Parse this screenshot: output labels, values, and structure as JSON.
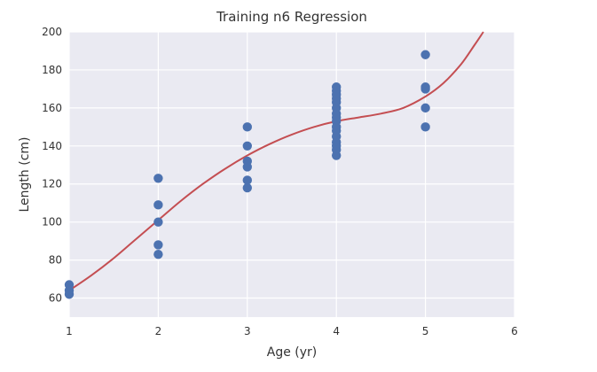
{
  "chart_data": {
    "type": "scatter",
    "title": "Training n6 Regression",
    "xlabel": "Age (yr)",
    "ylabel": "Length (cm)",
    "xlim": [
      1,
      6
    ],
    "ylim": [
      50,
      200
    ],
    "xticks": [
      1,
      2,
      3,
      4,
      5,
      6
    ],
    "yticks": [
      60,
      80,
      100,
      120,
      140,
      160,
      180,
      200
    ],
    "grid": true,
    "colors": {
      "background": "#eaeaf2",
      "grid": "#ffffff",
      "points": "#4c72b0",
      "curve": "#c44e52"
    },
    "series": [
      {
        "kind": "points",
        "points": [
          [
            1,
            62
          ],
          [
            1,
            64
          ],
          [
            1,
            67
          ],
          [
            2,
            83
          ],
          [
            2,
            88
          ],
          [
            2,
            100
          ],
          [
            2,
            109
          ],
          [
            2,
            123
          ],
          [
            3,
            118
          ],
          [
            3,
            122
          ],
          [
            3,
            129
          ],
          [
            3,
            132
          ],
          [
            3,
            140
          ],
          [
            3,
            150
          ],
          [
            4,
            135
          ],
          [
            4,
            138
          ],
          [
            4,
            140
          ],
          [
            4,
            142
          ],
          [
            4,
            145
          ],
          [
            4,
            148
          ],
          [
            4,
            150
          ],
          [
            4,
            153
          ],
          [
            4,
            155
          ],
          [
            4,
            157
          ],
          [
            4,
            160
          ],
          [
            4,
            163
          ],
          [
            4,
            165
          ],
          [
            4,
            167
          ],
          [
            4,
            169
          ],
          [
            4,
            171
          ],
          [
            5,
            150
          ],
          [
            5,
            160
          ],
          [
            5,
            170
          ],
          [
            5,
            171
          ],
          [
            5,
            188
          ]
        ]
      },
      {
        "kind": "regression-curve",
        "points": [
          [
            1.0,
            64
          ],
          [
            1.25,
            72
          ],
          [
            1.5,
            81
          ],
          [
            1.75,
            91
          ],
          [
            2.0,
            101
          ],
          [
            2.25,
            111
          ],
          [
            2.5,
            120
          ],
          [
            2.75,
            128
          ],
          [
            3.0,
            135
          ],
          [
            3.25,
            141
          ],
          [
            3.5,
            146
          ],
          [
            3.75,
            150
          ],
          [
            4.0,
            153
          ],
          [
            4.25,
            155
          ],
          [
            4.5,
            157
          ],
          [
            4.75,
            160
          ],
          [
            5.0,
            166
          ],
          [
            5.2,
            173
          ],
          [
            5.4,
            183
          ],
          [
            5.55,
            193
          ],
          [
            5.65,
            200
          ]
        ]
      }
    ]
  }
}
